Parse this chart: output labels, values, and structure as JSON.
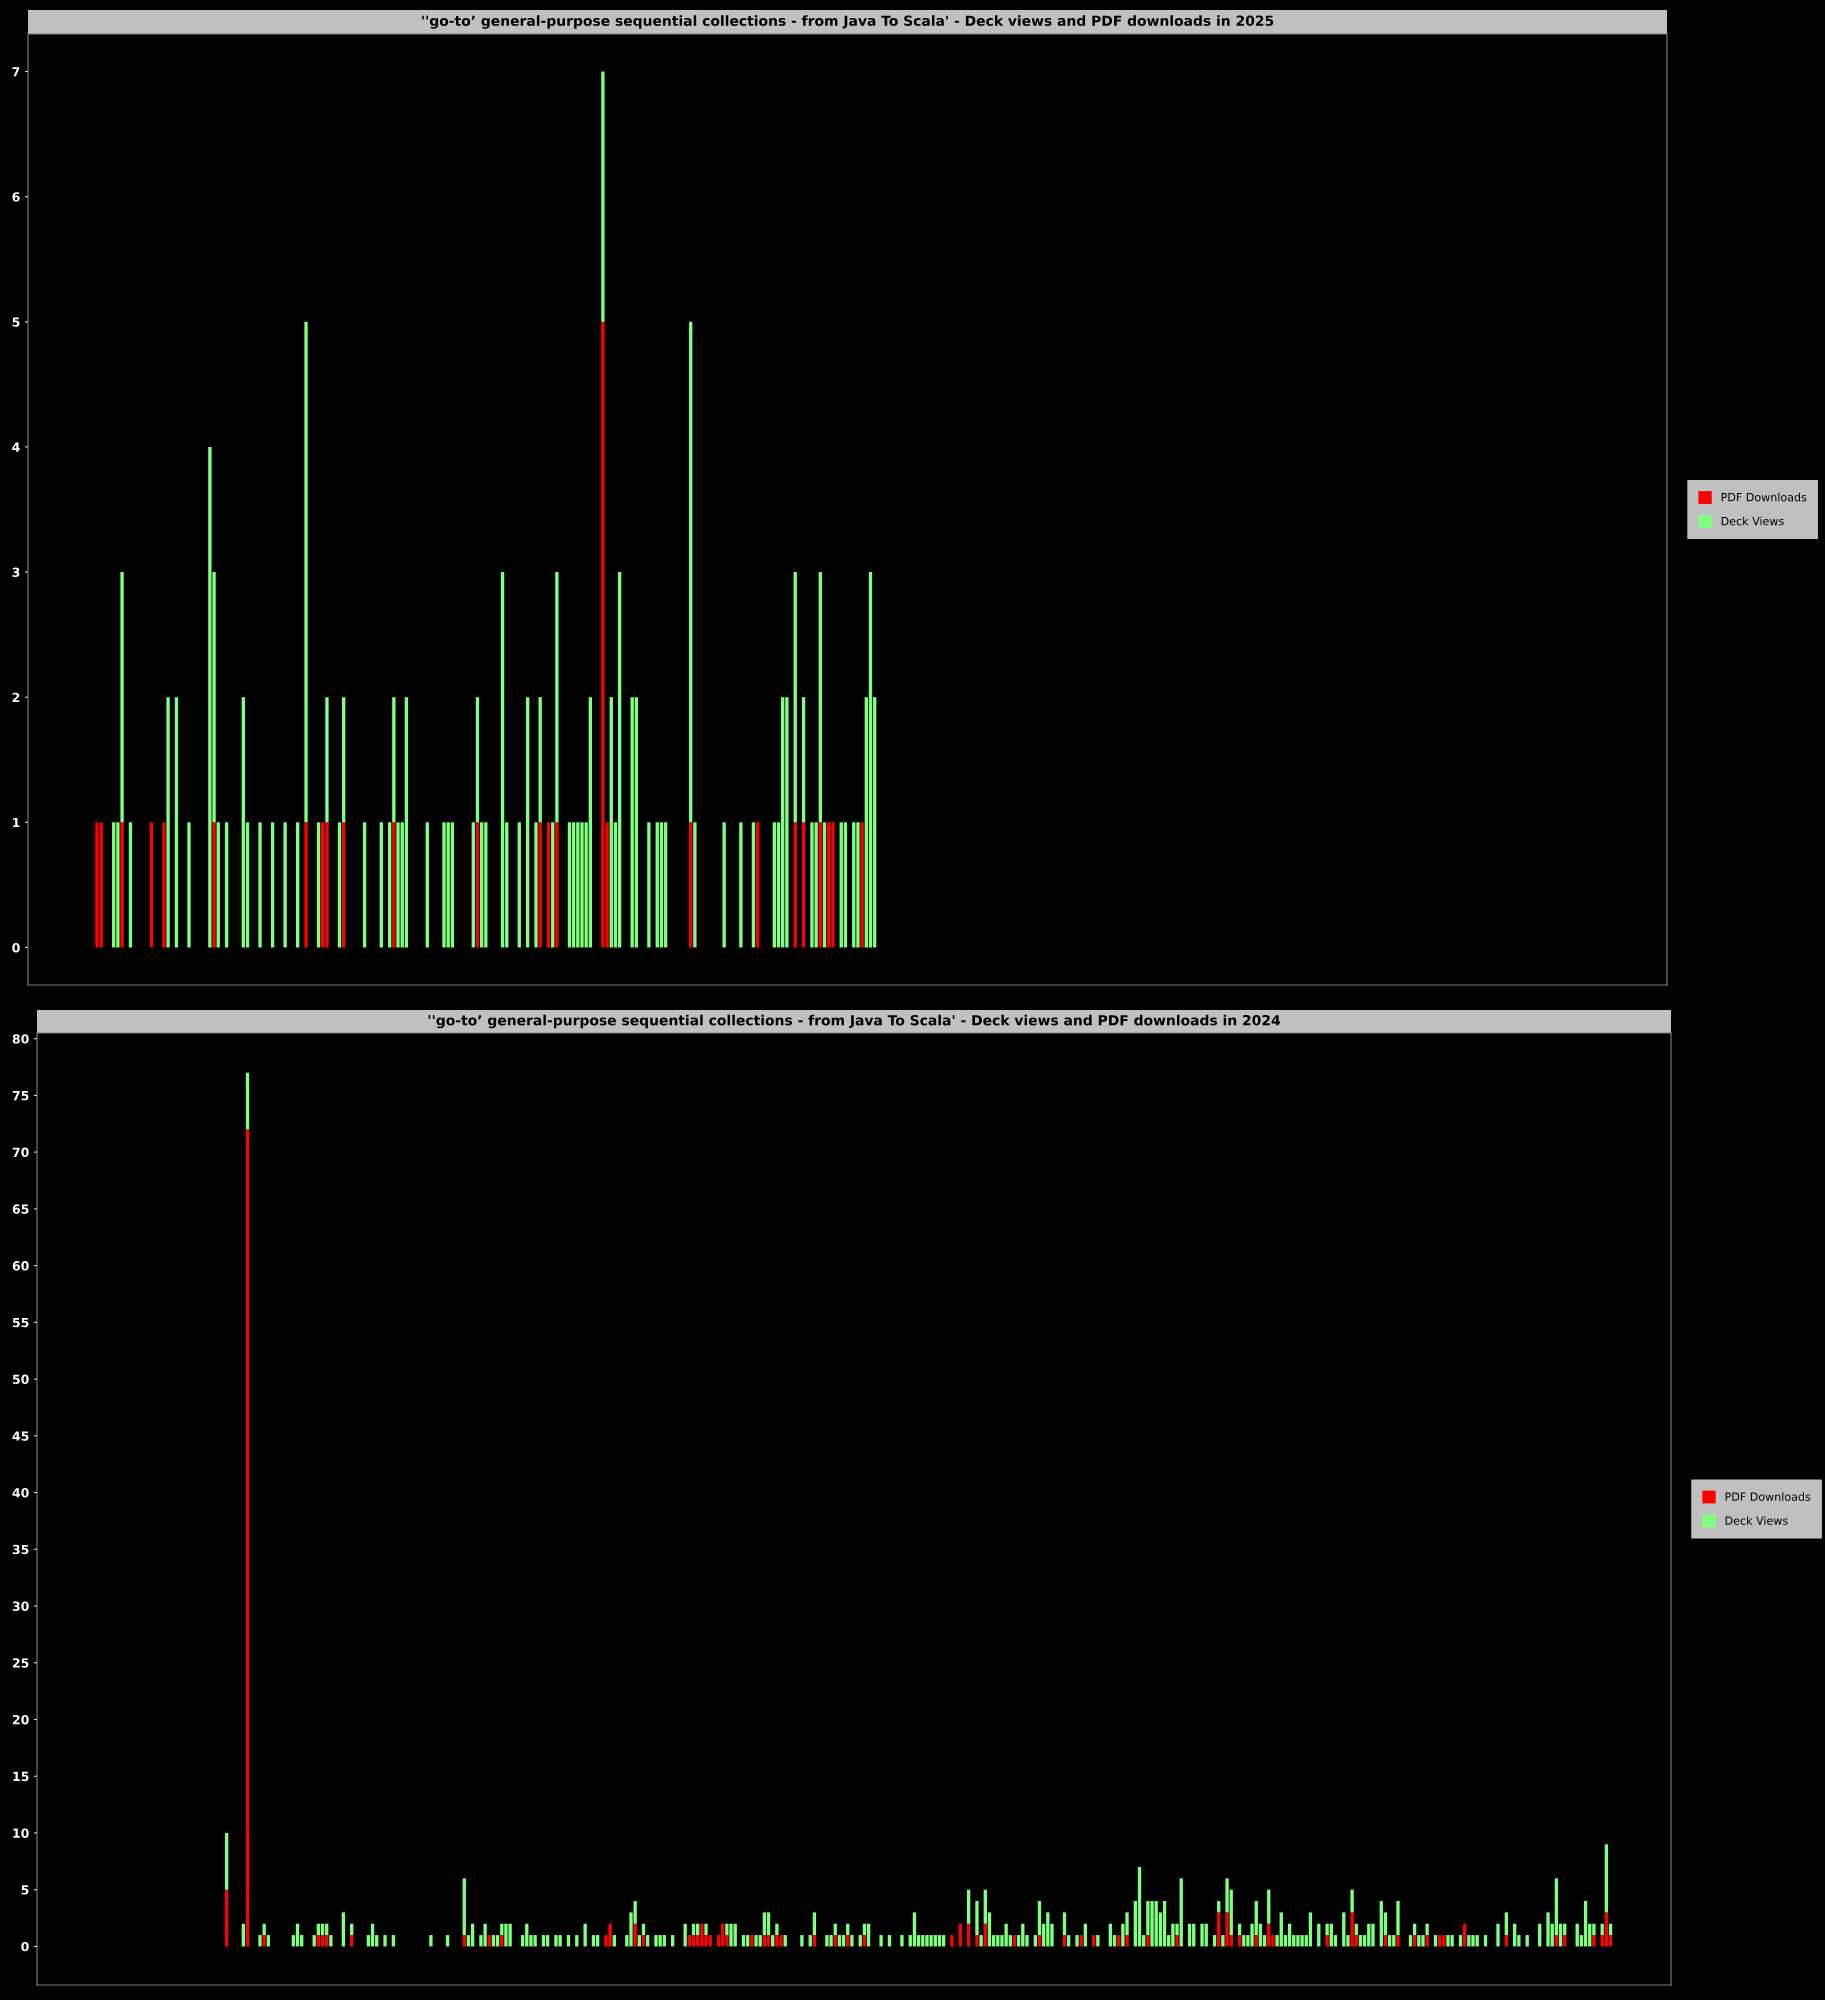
{
  "chart_data": [
    {
      "type": "bar",
      "stacked": true,
      "title": "''go-to’ general-purpose sequential collections - from Java To Scala' - Deck views and PDF downloads in 2025",
      "legend": "right",
      "tick_labels": "y",
      "ylim": [
        -0.3,
        7.3
      ],
      "yticks": [
        0,
        1,
        2,
        3,
        4,
        5,
        6,
        7
      ],
      "categories": [
        null,
        null,
        null,
        null,
        null,
        null,
        null,
        null,
        null,
        null,
        null,
        null,
        null,
        null,
        null,
        null,
        null,
        null,
        null,
        null,
        null,
        null,
        null,
        null,
        null,
        null,
        null,
        null,
        null,
        null,
        null,
        null,
        null,
        null,
        null,
        null,
        null,
        null,
        null,
        null,
        null,
        null,
        null,
        null,
        null,
        null,
        null,
        null,
        null,
        null,
        null,
        null,
        null,
        null,
        null,
        null,
        null,
        null,
        null,
        null,
        null,
        null,
        null,
        null,
        null,
        null,
        null,
        null,
        null,
        null,
        null,
        null,
        null,
        null,
        null,
        null,
        null,
        null,
        null,
        null,
        null,
        null,
        null,
        null,
        null,
        null,
        null,
        null,
        null,
        null,
        null,
        null,
        null,
        null,
        null,
        null,
        null,
        null,
        null,
        null,
        null,
        null,
        null,
        null,
        null,
        null,
        null,
        null,
        null,
        null,
        null,
        null,
        null,
        null,
        null,
        null,
        null,
        null,
        null,
        null,
        null,
        null,
        null,
        null,
        null,
        null,
        null,
        null,
        null,
        null,
        null,
        null,
        null,
        null,
        null,
        null,
        null,
        null,
        null,
        null,
        null,
        null,
        null,
        null,
        null,
        null,
        null,
        null,
        null,
        null,
        null,
        null,
        null,
        null,
        null,
        null,
        null,
        null,
        null,
        null,
        null,
        null,
        null,
        null,
        null,
        null,
        null,
        null,
        null,
        null,
        null,
        null,
        null,
        null,
        null,
        null,
        null,
        null,
        null,
        null,
        null,
        null,
        null,
        null,
        null,
        null,
        null,
        null,
        null,
        null,
        null,
        null,
        null,
        null,
        null,
        null,
        null,
        null,
        null,
        null,
        null,
        null,
        null,
        null,
        null,
        null,
        null,
        null,
        null,
        null,
        null,
        null,
        null,
        null,
        null,
        null,
        null,
        null,
        null,
        null,
        null,
        null,
        null,
        null,
        null,
        null,
        null,
        null,
        null,
        null,
        null,
        null,
        null,
        null,
        null,
        null,
        null,
        null,
        null,
        null,
        null,
        null,
        null,
        null,
        null,
        null,
        null,
        null,
        null,
        null,
        null,
        null,
        null,
        null,
        null,
        null,
        null,
        null,
        null,
        null,
        null,
        null,
        null,
        null,
        null,
        null,
        null,
        null,
        null,
        null,
        null,
        null,
        null,
        null,
        null,
        null,
        null,
        null,
        null,
        null,
        null,
        null,
        null,
        null,
        null,
        null,
        null,
        null,
        null,
        null,
        null,
        null,
        null,
        null,
        null,
        null,
        null,
        null,
        null,
        null,
        null,
        null,
        null,
        null,
        null,
        null,
        null,
        null,
        null,
        null,
        null,
        null,
        null,
        null,
        null,
        null,
        null,
        null,
        null,
        null,
        null,
        null,
        null,
        null,
        null,
        null,
        null,
        null,
        null,
        null,
        null,
        null,
        null,
        null,
        null,
        null,
        null,
        null,
        null,
        null,
        null,
        null,
        null,
        null,
        null,
        null,
        null,
        null,
        null,
        null,
        null,
        null,
        null,
        null,
        null,
        null,
        null,
        null,
        null,
        null,
        null,
        null,
        null,
        null,
        null,
        null,
        null,
        null,
        null,
        null,
        null,
        null,
        null,
        null,
        null,
        null,
        null,
        null,
        null,
        null,
        null,
        null,
        null,
        null,
        null,
        null,
        null,
        null,
        null,
        null,
        null,
        null
      ],
      "series": [
        {
          "name": "PDF Downloads",
          "color": "#ff0000",
          "values": [
            0,
            0,
            0,
            0,
            0,
            0,
            0,
            0,
            0,
            0,
            0,
            0,
            0,
            0,
            0,
            0,
            1,
            1,
            0,
            0,
            0,
            0,
            1,
            0,
            0,
            0,
            0,
            0,
            0,
            1,
            0,
            0,
            1,
            0,
            0,
            0,
            0,
            0,
            0,
            0,
            0,
            0,
            0,
            0,
            1,
            0,
            0,
            0,
            0,
            0,
            0,
            0,
            0,
            0,
            0,
            0,
            0,
            0,
            0,
            0,
            0,
            0,
            0,
            0,
            0,
            0,
            1,
            0,
            0,
            0,
            1,
            1,
            0,
            0,
            0,
            1,
            0,
            0,
            0,
            0,
            0,
            0,
            0,
            0,
            0,
            0,
            0,
            1,
            0,
            0,
            0,
            0,
            0,
            0,
            0,
            0,
            0,
            0,
            0,
            0,
            0,
            0,
            0,
            0,
            0,
            0,
            0,
            1,
            0,
            0,
            0,
            0,
            0,
            0,
            0,
            0,
            0,
            0,
            0,
            0,
            0,
            0,
            1,
            0,
            1,
            0,
            1,
            0,
            0,
            0,
            0,
            0,
            0,
            0,
            0,
            0,
            0,
            5,
            1,
            0,
            0,
            0,
            0,
            0,
            0,
            0,
            0,
            0,
            0,
            0,
            0,
            0,
            0,
            0,
            0,
            0,
            0,
            0,
            1,
            0,
            0,
            0,
            0,
            0,
            0,
            0,
            0,
            0,
            0,
            0,
            0,
            0,
            0,
            0,
            1,
            0,
            0,
            0,
            0,
            0,
            0,
            0,
            0,
            1,
            0,
            1,
            0,
            0,
            0,
            1,
            0,
            1,
            1,
            0,
            0,
            0,
            0,
            0,
            0,
            1,
            0,
            0,
            0,
            0,
            0,
            0,
            0,
            0,
            0,
            0,
            0,
            0,
            0,
            0,
            0,
            0,
            0,
            0,
            0,
            0,
            0,
            0,
            0,
            0,
            0,
            0,
            0,
            0,
            0,
            0,
            0,
            0,
            0,
            0,
            0,
            0,
            0,
            0,
            0,
            0,
            0,
            0,
            0,
            0,
            0,
            0,
            0,
            0,
            0,
            0,
            0,
            0,
            0,
            0,
            0,
            0,
            0,
            0,
            0,
            0,
            0,
            0,
            0,
            0,
            0,
            0,
            0,
            0,
            0,
            0,
            0,
            0,
            0,
            0,
            0,
            0,
            0,
            0,
            0,
            0,
            0,
            0,
            0,
            0,
            0,
            0,
            0,
            0,
            0,
            0,
            0,
            0,
            0,
            0,
            0,
            0,
            0,
            0,
            0,
            0,
            0,
            0,
            0,
            0,
            0,
            0,
            0,
            0,
            0,
            0,
            0,
            0,
            0,
            0,
            0,
            0,
            0,
            0,
            0,
            0,
            0,
            0,
            0,
            0,
            0,
            0,
            0,
            0,
            0,
            0,
            0,
            0,
            0,
            0,
            0,
            0,
            0,
            0,
            0,
            0,
            0,
            0,
            0,
            0,
            0,
            0,
            0,
            0,
            0,
            0,
            0,
            0,
            0,
            0,
            0,
            0,
            0,
            0,
            0,
            0,
            0,
            0,
            0,
            0,
            0,
            0,
            0,
            0,
            0,
            0,
            0,
            0,
            0,
            0,
            0,
            0,
            0,
            0,
            0,
            0,
            0,
            0,
            0,
            0,
            0,
            0,
            0,
            0,
            0,
            0,
            0,
            0
          ]
        },
        {
          "name": "Deck Views",
          "color": "#80ff80",
          "values": [
            0,
            0,
            0,
            0,
            0,
            0,
            0,
            0,
            0,
            0,
            0,
            0,
            0,
            0,
            0,
            0,
            0,
            0,
            0,
            0,
            1,
            1,
            2,
            0,
            1,
            0,
            0,
            0,
            0,
            0,
            0,
            0,
            0,
            2,
            0,
            2,
            0,
            0,
            1,
            0,
            0,
            0,
            0,
            4,
            2,
            1,
            0,
            1,
            0,
            0,
            0,
            2,
            1,
            0,
            0,
            1,
            0,
            0,
            1,
            0,
            0,
            1,
            0,
            0,
            1,
            0,
            4,
            0,
            0,
            1,
            0,
            1,
            0,
            0,
            1,
            1,
            0,
            0,
            0,
            0,
            1,
            0,
            0,
            0,
            1,
            0,
            1,
            1,
            1,
            1,
            2,
            0,
            0,
            0,
            0,
            1,
            0,
            0,
            0,
            1,
            1,
            1,
            0,
            0,
            0,
            0,
            1,
            1,
            1,
            1,
            0,
            0,
            0,
            3,
            1,
            0,
            0,
            1,
            0,
            2,
            0,
            1,
            1,
            0,
            0,
            1,
            2,
            0,
            0,
            1,
            1,
            1,
            1,
            1,
            2,
            0,
            0,
            2,
            0,
            2,
            1,
            3,
            0,
            0,
            2,
            2,
            0,
            0,
            1,
            0,
            1,
            1,
            1,
            0,
            0,
            0,
            0,
            0,
            4,
            1,
            0,
            0,
            0,
            0,
            0,
            0,
            1,
            0,
            0,
            0,
            1,
            0,
            0,
            1,
            0,
            0,
            0,
            0,
            1,
            1,
            2,
            2,
            0,
            2,
            0,
            1,
            0,
            1,
            1,
            2,
            1,
            0,
            0,
            0,
            1,
            1,
            0,
            1,
            1,
            0,
            2,
            3,
            2,
            0,
            0,
            0,
            0,
            0,
            0,
            0,
            0,
            0,
            0,
            0,
            0,
            0,
            0,
            0,
            0,
            0,
            0,
            0,
            0,
            0,
            0,
            0,
            0,
            0,
            0,
            0,
            0,
            0,
            0,
            0,
            0,
            0,
            0,
            0,
            0,
            0,
            0,
            0,
            0,
            0,
            0,
            0,
            0,
            0,
            0,
            0,
            0,
            0,
            0,
            0,
            0,
            0,
            0,
            0,
            0,
            0,
            0,
            0,
            0,
            0,
            0,
            0,
            0,
            0,
            0,
            0,
            0,
            0,
            0,
            0,
            0,
            0,
            0,
            0,
            0,
            0,
            0,
            0,
            0,
            0,
            0,
            0,
            0,
            0,
            0,
            0,
            0,
            0,
            0,
            0,
            0,
            0,
            0,
            0,
            0,
            0,
            0,
            0,
            0,
            0,
            0,
            0,
            0,
            0,
            0,
            0,
            0,
            0,
            0,
            0,
            0,
            0,
            0,
            0,
            0,
            0,
            0,
            0,
            0,
            0,
            0,
            0,
            0,
            0,
            0,
            0,
            0,
            0,
            0,
            0,
            0,
            0,
            0,
            0,
            0,
            0,
            0,
            0,
            0,
            0,
            0,
            0,
            0,
            0,
            0,
            0,
            0,
            0,
            0,
            0,
            0,
            0,
            0,
            0,
            0,
            0,
            0,
            0,
            0,
            0,
            0,
            0,
            0,
            0,
            0,
            0,
            0,
            0,
            0,
            0,
            0,
            0,
            0,
            0,
            0,
            0,
            0,
            0,
            0,
            0,
            0,
            0,
            0,
            0,
            0,
            0,
            0,
            0
          ]
        }
      ]
    },
    {
      "type": "bar",
      "stacked": true,
      "title": "''go-to’ general-purpose sequential collections - from Java To Scala' - Deck views and PDF downloads in 2024",
      "legend": "right",
      "tick_labels": "y",
      "ylim": [
        -3.4,
        80.5
      ],
      "yticks": [
        0,
        5,
        10,
        15,
        20,
        25,
        30,
        35,
        40,
        45,
        50,
        55,
        60,
        65,
        70,
        75,
        80
      ],
      "categories": [
        null,
        null,
        null,
        null,
        null,
        null,
        null,
        null,
        null,
        null,
        null,
        null,
        null,
        null,
        null,
        null,
        null,
        null,
        null,
        null,
        null,
        null,
        null,
        null,
        null,
        null,
        null,
        null,
        null,
        null,
        null,
        null,
        null,
        null,
        null,
        null,
        null,
        null,
        null,
        null,
        null,
        null,
        null,
        null,
        null,
        null,
        null,
        null,
        null,
        null,
        null,
        null,
        null,
        null,
        null,
        null,
        null,
        null,
        null,
        null,
        null,
        null,
        null,
        null,
        null,
        null,
        null,
        null,
        null,
        null,
        null,
        null,
        null,
        null,
        null,
        null,
        null,
        null,
        null,
        null,
        null,
        null,
        null,
        null,
        null,
        null,
        null,
        null,
        null,
        null,
        null,
        null,
        null,
        null,
        null,
        null,
        null,
        null,
        null,
        null,
        null,
        null,
        null,
        null,
        null,
        null,
        null,
        null,
        null,
        null,
        null,
        null,
        null,
        null,
        null,
        null,
        null,
        null,
        null,
        null,
        null,
        null,
        null,
        null,
        null,
        null,
        null,
        null,
        null,
        null,
        null,
        null,
        null,
        null,
        null,
        null,
        null,
        null,
        null,
        null,
        null,
        null,
        null,
        null,
        null,
        null,
        null,
        null,
        null,
        null,
        null,
        null,
        null,
        null,
        null,
        null,
        null,
        null,
        null,
        null,
        null,
        null,
        null,
        null,
        null,
        null,
        null,
        null,
        null,
        null,
        null,
        null,
        null,
        null,
        null,
        null,
        null,
        null,
        null,
        null,
        null,
        null,
        null,
        null,
        null,
        null,
        null,
        null,
        null,
        null,
        null,
        null,
        null,
        null,
        null,
        null,
        null,
        null,
        null,
        null,
        null,
        null,
        null,
        null,
        null,
        null,
        null,
        null,
        null,
        null,
        null,
        null,
        null,
        null,
        null,
        null,
        null,
        null,
        null,
        null,
        null,
        null,
        null,
        null,
        null,
        null,
        null,
        null,
        null,
        null,
        null,
        null,
        null,
        null,
        null,
        null,
        null,
        null,
        null,
        null,
        null,
        null,
        null,
        null,
        null,
        null,
        null,
        null,
        null,
        null,
        null,
        null,
        null,
        null,
        null,
        null,
        null,
        null,
        null,
        null,
        null,
        null,
        null,
        null,
        null,
        null,
        null,
        null,
        null,
        null,
        null,
        null,
        null,
        null,
        null,
        null,
        null,
        null,
        null,
        null,
        null,
        null,
        null,
        null,
        null,
        null,
        null,
        null,
        null,
        null,
        null,
        null,
        null,
        null,
        null,
        null,
        null,
        null,
        null,
        null,
        null,
        null,
        null,
        null,
        null,
        null,
        null,
        null,
        null,
        null,
        null,
        null,
        null,
        null,
        null,
        null,
        null,
        null,
        null,
        null,
        null,
        null,
        null,
        null,
        null,
        null,
        null,
        null,
        null,
        null,
        null,
        null,
        null,
        null,
        null,
        null,
        null,
        null,
        null,
        null,
        null,
        null,
        null,
        null,
        null,
        null,
        null,
        null,
        null,
        null,
        null,
        null,
        null,
        null,
        null,
        null,
        null,
        null,
        null,
        null,
        null,
        null,
        null,
        null,
        null,
        null,
        null,
        null,
        null,
        null,
        null,
        null,
        null,
        null,
        null,
        null,
        null,
        null,
        null,
        null,
        null,
        null,
        null,
        null,
        null,
        null,
        null,
        null,
        null,
        null,
        null,
        null
      ],
      "series": [
        {
          "name": "PDF Downloads",
          "color": "#ff0000",
          "values": [
            0,
            0,
            0,
            0,
            0,
            0,
            0,
            0,
            0,
            0,
            0,
            0,
            0,
            0,
            0,
            0,
            0,
            0,
            0,
            0,
            0,
            0,
            0,
            0,
            0,
            0,
            0,
            0,
            0,
            0,
            0,
            0,
            0,
            0,
            0,
            0,
            0,
            0,
            0,
            0,
            0,
            0,
            0,
            0,
            0,
            5,
            0,
            0,
            0,
            0,
            72,
            0,
            0,
            0,
            1,
            0,
            0,
            0,
            0,
            0,
            0,
            0,
            0,
            0,
            0,
            0,
            0,
            1,
            1,
            1,
            0,
            0,
            0,
            0,
            0,
            1,
            0,
            0,
            0,
            0,
            0,
            0,
            0,
            0,
            0,
            0,
            0,
            0,
            0,
            0,
            0,
            0,
            0,
            0,
            0,
            0,
            0,
            0,
            0,
            0,
            0,
            0,
            1,
            0,
            0,
            0,
            0,
            0,
            1,
            0,
            0,
            1,
            0,
            0,
            0,
            0,
            0,
            0,
            0,
            0,
            0,
            0,
            0,
            0,
            0,
            0,
            0,
            0,
            0,
            0,
            0,
            0,
            0,
            0,
            0,
            0,
            1,
            2,
            0,
            0,
            0,
            0,
            0,
            2,
            0,
            1,
            0,
            0,
            0,
            0,
            0,
            0,
            0,
            0,
            0,
            0,
            1,
            1,
            1,
            2,
            1,
            1,
            0,
            1,
            2,
            1,
            0,
            0,
            0,
            0,
            0,
            1,
            0,
            0,
            1,
            1,
            0,
            1,
            1,
            0,
            0,
            0,
            0,
            0,
            0,
            0,
            1,
            0,
            0,
            0,
            0,
            1,
            0,
            0,
            1,
            0,
            0,
            0,
            1,
            0,
            0,
            0,
            0,
            0,
            0,
            0,
            0,
            0,
            0,
            0,
            0,
            0,
            0,
            0,
            0,
            0,
            0,
            0,
            0,
            1,
            0,
            2,
            0,
            2,
            0,
            1,
            0,
            2,
            0,
            0,
            0,
            0,
            0,
            0,
            1,
            0,
            0,
            0,
            0,
            0,
            1,
            0,
            0,
            0,
            0,
            0,
            1,
            0,
            0,
            0,
            1,
            0,
            0,
            1,
            0,
            0,
            0,
            0,
            0,
            1,
            0,
            1,
            0,
            0,
            0,
            0,
            1,
            0,
            0,
            0,
            0,
            0,
            0,
            1,
            0,
            0,
            0,
            0,
            0,
            0,
            0,
            0,
            0,
            3,
            0,
            3,
            1,
            0,
            1,
            0,
            0,
            0,
            1,
            0,
            0,
            2,
            1,
            0,
            0,
            0,
            0,
            0,
            0,
            0,
            0,
            0,
            0,
            0,
            0,
            1,
            0,
            0,
            0,
            0,
            0,
            3,
            1,
            0,
            0,
            0,
            0,
            0,
            0,
            1,
            0,
            0,
            1,
            0,
            0,
            0,
            1,
            0,
            0,
            1,
            0,
            0,
            1,
            1,
            0,
            0,
            0,
            0,
            2,
            0,
            0,
            0,
            0,
            0,
            0,
            0,
            0,
            0,
            1,
            0,
            0,
            0,
            0,
            0,
            0,
            0,
            0,
            0,
            0,
            0,
            1,
            0,
            1,
            0,
            0,
            0,
            0,
            0,
            0,
            1,
            0,
            1,
            3,
            1,
            0,
            0,
            0,
            0,
            0,
            0,
            0,
            0,
            0,
            0,
            0,
            0,
            0,
            0
          ]
        },
        {
          "name": "Deck Views",
          "color": "#80ff80",
          "values": [
            0,
            0,
            0,
            0,
            0,
            0,
            0,
            0,
            0,
            0,
            0,
            0,
            0,
            0,
            0,
            0,
            0,
            0,
            0,
            0,
            0,
            0,
            0,
            0,
            0,
            0,
            0,
            0,
            0,
            0,
            0,
            0,
            0,
            0,
            0,
            0,
            0,
            0,
            0,
            0,
            0,
            0,
            0,
            0,
            0,
            5,
            0,
            0,
            0,
            2,
            5,
            0,
            0,
            1,
            1,
            1,
            0,
            0,
            0,
            0,
            0,
            1,
            2,
            1,
            0,
            0,
            1,
            1,
            1,
            1,
            1,
            0,
            0,
            3,
            0,
            1,
            0,
            0,
            0,
            1,
            2,
            1,
            0,
            1,
            0,
            1,
            0,
            0,
            0,
            0,
            0,
            0,
            0,
            0,
            1,
            0,
            0,
            0,
            1,
            0,
            0,
            0,
            5,
            1,
            2,
            0,
            1,
            2,
            0,
            1,
            1,
            1,
            2,
            2,
            0,
            0,
            1,
            2,
            1,
            1,
            0,
            1,
            1,
            0,
            1,
            1,
            0,
            1,
            0,
            1,
            0,
            2,
            0,
            1,
            1,
            0,
            0,
            0,
            1,
            0,
            0,
            1,
            3,
            2,
            1,
            1,
            1,
            0,
            1,
            1,
            1,
            0,
            1,
            0,
            0,
            2,
            0,
            1,
            1,
            0,
            1,
            0,
            0,
            0,
            0,
            1,
            2,
            2,
            0,
            1,
            1,
            0,
            1,
            1,
            2,
            2,
            1,
            1,
            0,
            1,
            0,
            0,
            0,
            1,
            0,
            1,
            2,
            0,
            0,
            1,
            1,
            1,
            1,
            1,
            1,
            1,
            0,
            1,
            1,
            2,
            0,
            0,
            1,
            0,
            1,
            0,
            0,
            1,
            0,
            1,
            3,
            1,
            1,
            1,
            1,
            1,
            1,
            1,
            0,
            0,
            0,
            0,
            0,
            3,
            0,
            3,
            1,
            3,
            3,
            1,
            1,
            1,
            2,
            1,
            0,
            1,
            2,
            1,
            0,
            1,
            3,
            2,
            3,
            2,
            0,
            0,
            2,
            1,
            0,
            1,
            0,
            2,
            0,
            0,
            1,
            0,
            0,
            2,
            1,
            0,
            2,
            2,
            0,
            4,
            7,
            1,
            3,
            4,
            4,
            3,
            4,
            1,
            2,
            1,
            6,
            0,
            2,
            2,
            0,
            2,
            2,
            0,
            1,
            1,
            1,
            3,
            4,
            0,
            1,
            1,
            1,
            2,
            3,
            2,
            1,
            3,
            0,
            1,
            3,
            1,
            2,
            1,
            1,
            1,
            1,
            3,
            0,
            2,
            0,
            1,
            2,
            1,
            0,
            3,
            1,
            2,
            1,
            1,
            1,
            2,
            2,
            0,
            4,
            2,
            1,
            1,
            3,
            0,
            0,
            1,
            1,
            1,
            1,
            1,
            0,
            1,
            0,
            0,
            1,
            1,
            0,
            1,
            0,
            1,
            1,
            1,
            0,
            1,
            0,
            0,
            2,
            0,
            2,
            0,
            2,
            1,
            0,
            1,
            0,
            0,
            2,
            0,
            3,
            2,
            5,
            2,
            1,
            0,
            0,
            2,
            1,
            4,
            2,
            1,
            0,
            1,
            6,
            1,
            0,
            0,
            0,
            0,
            0,
            0,
            0,
            0,
            0,
            0,
            0,
            0,
            0,
            0
          ]
        }
      ]
    }
  ]
}
